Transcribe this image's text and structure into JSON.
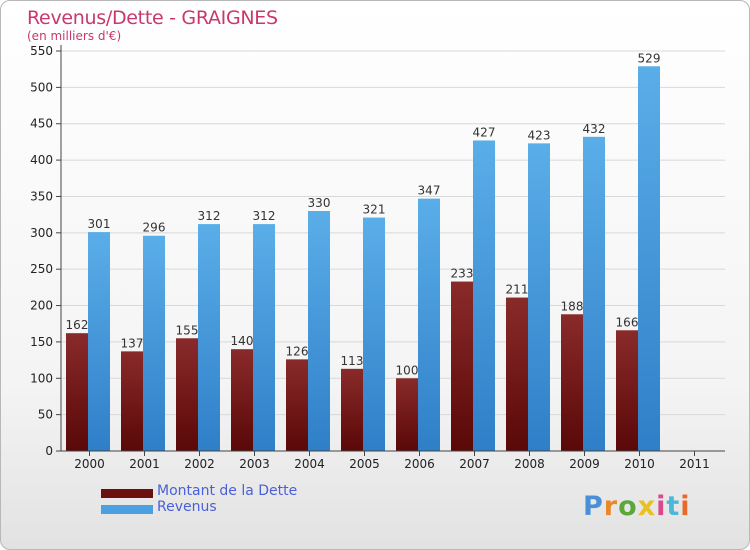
{
  "header": {
    "title": "Revenus/Dette - GRAIGNES",
    "subtitle": "(en milliers d'€)"
  },
  "colors": {
    "dette": "#7a1f1f",
    "revenus": "#4aa0e0",
    "accent": "#c8386e"
  },
  "legend": {
    "items": [
      {
        "label": "Montant de la Dette",
        "color": "#6b0f0f"
      },
      {
        "label": "Revenus",
        "color": "#4aa0e0"
      }
    ]
  },
  "logo": {
    "text": "Proxiti"
  },
  "chart_data": {
    "type": "bar",
    "categories": [
      "2000",
      "2001",
      "2002",
      "2003",
      "2004",
      "2005",
      "2006",
      "2007",
      "2008",
      "2009",
      "2010",
      "2011"
    ],
    "series": [
      {
        "name": "Montant de la Dette",
        "values": [
          162,
          137,
          155,
          140,
          126,
          113,
          100,
          233,
          211,
          188,
          166,
          null
        ]
      },
      {
        "name": "Revenus",
        "values": [
          301,
          296,
          312,
          312,
          330,
          321,
          347,
          427,
          423,
          432,
          529,
          null
        ]
      }
    ],
    "yticks": [
      0,
      50,
      100,
      150,
      200,
      250,
      300,
      350,
      400,
      450,
      500,
      550
    ],
    "ylim": [
      0,
      550
    ],
    "grid": true,
    "legend_position": "bottom-left"
  }
}
